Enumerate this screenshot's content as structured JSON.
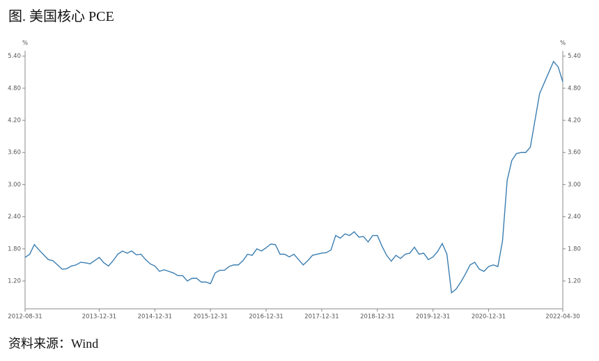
{
  "title": "图. 美国核心 PCE",
  "source": "资料来源：Wind",
  "chart_data": {
    "type": "line",
    "y_unit": "%",
    "x": [
      "2012-08-31",
      "2012-09-30",
      "2012-10-31",
      "2012-11-30",
      "2012-12-31",
      "2013-01-31",
      "2013-02-28",
      "2013-03-31",
      "2013-04-30",
      "2013-05-31",
      "2013-06-30",
      "2013-07-31",
      "2013-08-31",
      "2013-09-30",
      "2013-10-31",
      "2013-11-30",
      "2013-12-31",
      "2014-01-31",
      "2014-02-28",
      "2014-03-31",
      "2014-04-30",
      "2014-05-31",
      "2014-06-30",
      "2014-07-31",
      "2014-08-31",
      "2014-09-30",
      "2014-10-31",
      "2014-11-30",
      "2014-12-31",
      "2015-01-31",
      "2015-02-28",
      "2015-03-31",
      "2015-04-30",
      "2015-05-31",
      "2015-06-30",
      "2015-07-31",
      "2015-08-31",
      "2015-09-30",
      "2015-10-31",
      "2015-11-30",
      "2015-12-31",
      "2016-01-31",
      "2016-02-29",
      "2016-03-31",
      "2016-04-30",
      "2016-05-31",
      "2016-06-30",
      "2016-07-31",
      "2016-08-31",
      "2016-09-30",
      "2016-10-31",
      "2016-11-30",
      "2016-12-31",
      "2017-01-31",
      "2017-02-28",
      "2017-03-31",
      "2017-04-30",
      "2017-05-31",
      "2017-06-30",
      "2017-07-31",
      "2017-08-31",
      "2017-09-30",
      "2017-10-31",
      "2017-11-30",
      "2017-12-31",
      "2018-01-31",
      "2018-02-28",
      "2018-03-31",
      "2018-04-30",
      "2018-05-31",
      "2018-06-30",
      "2018-07-31",
      "2018-08-31",
      "2018-09-30",
      "2018-10-31",
      "2018-11-30",
      "2018-12-31",
      "2019-01-31",
      "2019-02-28",
      "2019-03-31",
      "2019-04-30",
      "2019-05-31",
      "2019-06-30",
      "2019-07-31",
      "2019-08-31",
      "2019-09-30",
      "2019-10-31",
      "2019-11-30",
      "2019-12-31",
      "2020-01-31",
      "2020-02-29",
      "2020-03-31",
      "2020-04-30",
      "2020-05-31",
      "2020-06-30",
      "2020-07-31",
      "2020-08-31",
      "2020-09-30",
      "2020-10-31",
      "2020-11-30",
      "2020-12-31",
      "2021-01-31",
      "2021-02-28",
      "2021-03-31",
      "2021-04-30",
      "2021-05-31",
      "2021-06-30",
      "2021-07-31",
      "2021-08-31",
      "2021-09-30",
      "2021-10-31",
      "2021-11-30",
      "2021-12-31",
      "2022-01-31",
      "2022-02-28",
      "2022-03-31",
      "2022-04-30"
    ],
    "series": [
      {
        "color": "#3a7db0",
        "values": [
          1.64,
          1.7,
          1.88,
          1.78,
          1.69,
          1.6,
          1.58,
          1.5,
          1.42,
          1.43,
          1.48,
          1.5,
          1.55,
          1.54,
          1.52,
          1.58,
          1.64,
          1.54,
          1.48,
          1.58,
          1.7,
          1.76,
          1.72,
          1.76,
          1.69,
          1.7,
          1.6,
          1.52,
          1.48,
          1.38,
          1.41,
          1.38,
          1.35,
          1.3,
          1.3,
          1.2,
          1.25,
          1.25,
          1.18,
          1.18,
          1.15,
          1.35,
          1.4,
          1.4,
          1.47,
          1.5,
          1.5,
          1.58,
          1.7,
          1.68,
          1.8,
          1.76,
          1.82,
          1.89,
          1.88,
          1.7,
          1.7,
          1.65,
          1.7,
          1.6,
          1.5,
          1.58,
          1.68,
          1.7,
          1.72,
          1.73,
          1.78,
          2.05,
          2.0,
          2.08,
          2.05,
          2.12,
          2.02,
          2.03,
          1.93,
          2.05,
          2.05,
          1.85,
          1.68,
          1.57,
          1.68,
          1.62,
          1.7,
          1.72,
          1.83,
          1.7,
          1.72,
          1.6,
          1.65,
          1.75,
          1.9,
          1.7,
          0.98,
          1.05,
          1.18,
          1.33,
          1.5,
          1.55,
          1.42,
          1.38,
          1.47,
          1.5,
          1.47,
          1.95,
          3.08,
          3.45,
          3.58,
          3.6,
          3.6,
          3.7,
          4.2,
          4.7,
          4.9,
          5.1,
          5.3,
          5.2,
          4.92
        ]
      }
    ],
    "xlim": [
      "2012-08-31",
      "2022-04-30"
    ],
    "xticks": [
      "2012-08-31",
      "2013-12-31",
      "2014-12-31",
      "2015-12-31",
      "2016-12-31",
      "2017-12-31",
      "2018-12-31",
      "2019-12-31",
      "2020-12-31",
      "2022-04-30"
    ],
    "ylim": [
      0.68,
      5.5
    ],
    "yticks": [
      {
        "value": 1.2,
        "label": "1.20"
      },
      {
        "value": 1.8,
        "label": "1.80"
      },
      {
        "value": 2.4,
        "label": "2.40"
      },
      {
        "value": 3.0,
        "label": "3.00"
      },
      {
        "value": 3.6,
        "label": "3.60"
      },
      {
        "value": 4.2,
        "label": "4.20"
      },
      {
        "value": 4.8,
        "label": "4.80"
      },
      {
        "value": 5.4,
        "label": "5.40"
      }
    ]
  }
}
